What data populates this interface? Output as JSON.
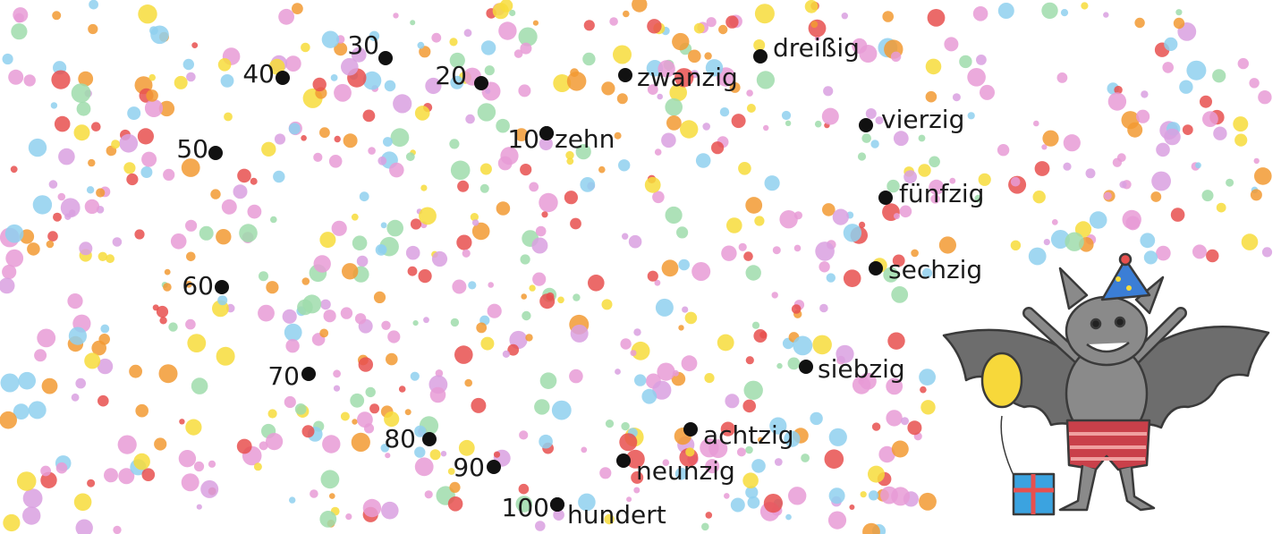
{
  "numbers": [
    10,
    20,
    30,
    40,
    50,
    60,
    70,
    80,
    90,
    100
  ],
  "words": [
    "zehn",
    "zwanzig",
    "dreißig",
    "vierzig",
    "fünfzig",
    "sechzig",
    "siebzig",
    "achtzig",
    "neunzig",
    "hundert"
  ]
}
